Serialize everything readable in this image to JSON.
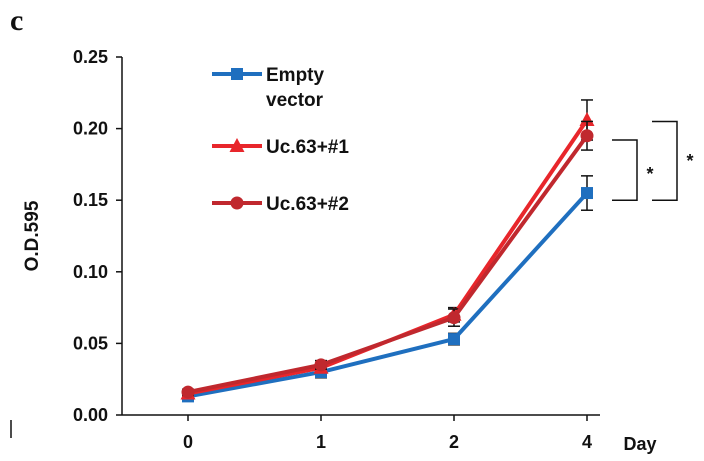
{
  "panel_label": "c",
  "chart_data": {
    "type": "line",
    "x_ticks": [
      "0",
      "1",
      "2",
      "4"
    ],
    "x_unit_label": "Day",
    "ylabel": "O.D.595",
    "ylim": [
      0,
      0.25
    ],
    "y_ticks": [
      "0.00",
      "0.05",
      "0.10",
      "0.15",
      "0.20",
      "0.25"
    ],
    "grid": false,
    "legend_position": "top-left",
    "series": [
      {
        "name_lines": [
          "Empty",
          "vector"
        ],
        "color": "#1f6fbf",
        "marker": "square",
        "values": [
          0.013,
          0.03,
          0.053,
          0.155
        ],
        "errors": [
          0.002,
          0.004,
          0.004,
          0.012
        ]
      },
      {
        "name_lines": [
          "Uc.63+#1"
        ],
        "color": "#e8262b",
        "marker": "triangle",
        "values": [
          0.015,
          0.033,
          0.07,
          0.206
        ],
        "errors": [
          0.002,
          0.003,
          0.005,
          0.014
        ]
      },
      {
        "name_lines": [
          "Uc.63+#2"
        ],
        "color": "#c0282e",
        "marker": "circle",
        "values": [
          0.016,
          0.035,
          0.068,
          0.195
        ],
        "errors": [
          0.002,
          0.003,
          0.006,
          0.01
        ]
      }
    ],
    "significance": [
      {
        "label": "*",
        "from_value": 0.15,
        "to_value": 0.192
      },
      {
        "label": "*",
        "from_value": 0.15,
        "to_value": 0.205
      }
    ]
  }
}
